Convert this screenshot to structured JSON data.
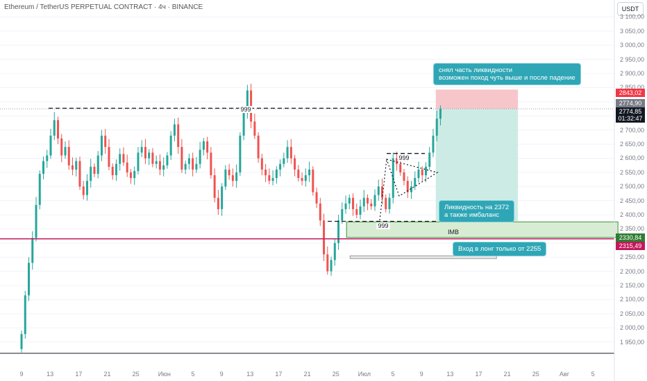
{
  "header": {
    "title": "Ethereum / TetherUS PERPETUAL CONTRACT · 4ч · BINANCE",
    "currency": "USDT"
  },
  "colors": {
    "up": "#26a69a",
    "down": "#ef5350",
    "support_line": "#c2185b",
    "stop_zone": "#f7c6cb",
    "target_zone": "#cdebe5",
    "imb_zone": "#d8ecd3",
    "imb_border": "#3b8f3b",
    "note_bg": "#2fa6b6"
  },
  "chart_data": {
    "type": "candlestick",
    "y_axis": {
      "range": [
        1910,
        3160
      ],
      "ticks": [
        "3 100,00",
        "3 050,00",
        "3 000,00",
        "2 950,00",
        "2 900,00",
        "2 850,00",
        "2 800,00",
        "2 750,00",
        "2 700,00",
        "2 650,00",
        "2 600,00",
        "2 550,00",
        "2 500,00",
        "2 450,00",
        "2 400,00",
        "2 350,00",
        "2 300,00",
        "2 250,00",
        "2 200,00",
        "2 150,00",
        "2 100,00",
        "2 050,00",
        "2 000,00",
        "1 950,00"
      ],
      "tick_values": [
        3100,
        3050,
        3000,
        2950,
        2900,
        2850,
        2800,
        2750,
        2700,
        2650,
        2600,
        2550,
        2500,
        2450,
        2400,
        2350,
        2300,
        2250,
        2200,
        2150,
        2100,
        2050,
        2000,
        1950
      ]
    },
    "x_axis": {
      "ticks": [
        "9",
        "13",
        "17",
        "21",
        "25",
        "Июн",
        "5",
        "9",
        "13",
        "17",
        "21",
        "25",
        "Июл",
        "5",
        "9",
        "13",
        "17",
        "21",
        "25",
        "Авг",
        "5"
      ],
      "tick_index": [
        0,
        8,
        16,
        24,
        32,
        40,
        48,
        56,
        64,
        72,
        80,
        88,
        96,
        104,
        112,
        120,
        128,
        136,
        144,
        152,
        160
      ],
      "range": [
        -0.2,
        166
      ]
    },
    "candles": [
      [
        1925,
        1978
      ],
      [
        1978,
        2115
      ],
      [
        2115,
        2230
      ],
      [
        2230,
        2318
      ],
      [
        2318,
        2435
      ],
      [
        2435,
        2545
      ],
      [
        2545,
        2590
      ],
      [
        2590,
        2610
      ],
      [
        2610,
        2680
      ],
      [
        2680,
        2735
      ],
      [
        2735,
        2670
      ],
      [
        2670,
        2610
      ],
      [
        2610,
        2640
      ],
      [
        2640,
        2575
      ],
      [
        2575,
        2560
      ],
      [
        2560,
        2590
      ],
      [
        2590,
        2500
      ],
      [
        2500,
        2470
      ],
      [
        2470,
        2520
      ],
      [
        2520,
        2570
      ],
      [
        2570,
        2545
      ],
      [
        2545,
        2610
      ],
      [
        2610,
        2680
      ],
      [
        2680,
        2640
      ],
      [
        2640,
        2570
      ],
      [
        2570,
        2540
      ],
      [
        2540,
        2580
      ],
      [
        2580,
        2615
      ],
      [
        2615,
        2585
      ],
      [
        2585,
        2550
      ],
      [
        2550,
        2530
      ],
      [
        2530,
        2555
      ],
      [
        2555,
        2620
      ],
      [
        2620,
        2640
      ],
      [
        2640,
        2600
      ],
      [
        2600,
        2620
      ],
      [
        2620,
        2580
      ],
      [
        2580,
        2590
      ],
      [
        2590,
        2560
      ],
      [
        2560,
        2575
      ],
      [
        2575,
        2610
      ],
      [
        2610,
        2680
      ],
      [
        2680,
        2720
      ],
      [
        2720,
        2640
      ],
      [
        2640,
        2560
      ],
      [
        2560,
        2580
      ],
      [
        2580,
        2600
      ],
      [
        2600,
        2560
      ],
      [
        2560,
        2580
      ],
      [
        2580,
        2630
      ],
      [
        2630,
        2660
      ],
      [
        2660,
        2620
      ],
      [
        2620,
        2540
      ],
      [
        2540,
        2460
      ],
      [
        2460,
        2420
      ],
      [
        2420,
        2500
      ],
      [
        2500,
        2560
      ],
      [
        2560,
        2540
      ],
      [
        2540,
        2520
      ],
      [
        2520,
        2550
      ],
      [
        2550,
        2680
      ],
      [
        2680,
        2760
      ],
      [
        2760,
        2840
      ],
      [
        2840,
        2730
      ],
      [
        2730,
        2680
      ],
      [
        2680,
        2600
      ],
      [
        2600,
        2560
      ],
      [
        2560,
        2540
      ],
      [
        2540,
        2520
      ],
      [
        2520,
        2530
      ],
      [
        2530,
        2560
      ],
      [
        2560,
        2580
      ],
      [
        2580,
        2600
      ],
      [
        2600,
        2640
      ],
      [
        2640,
        2600
      ],
      [
        2600,
        2560
      ],
      [
        2560,
        2530
      ],
      [
        2530,
        2520
      ],
      [
        2520,
        2540
      ],
      [
        2540,
        2560
      ],
      [
        2560,
        2480
      ],
      [
        2480,
        2440
      ],
      [
        2440,
        2380
      ],
      [
        2380,
        2260
      ],
      [
        2260,
        2200
      ],
      [
        2200,
        2240
      ],
      [
        2240,
        2300
      ],
      [
        2300,
        2380
      ],
      [
        2380,
        2420
      ],
      [
        2420,
        2440
      ],
      [
        2440,
        2460
      ],
      [
        2460,
        2420
      ],
      [
        2420,
        2400
      ],
      [
        2400,
        2430
      ],
      [
        2430,
        2460
      ],
      [
        2460,
        2440
      ],
      [
        2440,
        2430
      ],
      [
        2430,
        2470
      ],
      [
        2470,
        2500
      ],
      [
        2500,
        2460
      ],
      [
        2460,
        2420
      ],
      [
        2420,
        2460
      ],
      [
        2460,
        2600
      ],
      [
        2600,
        2580
      ],
      [
        2580,
        2550
      ],
      [
        2550,
        2520
      ],
      [
        2520,
        2480
      ],
      [
        2480,
        2500
      ],
      [
        2500,
        2530
      ],
      [
        2530,
        2560
      ],
      [
        2560,
        2540
      ],
      [
        2540,
        2570
      ],
      [
        2570,
        2620
      ],
      [
        2620,
        2680
      ],
      [
        2680,
        2740
      ],
      [
        2740,
        2775
      ]
    ],
    "levels": {
      "support_line": 2315,
      "liquidity_top": 2777,
      "liquidity_low": 2377,
      "inner_999": 2617
    },
    "zones": {
      "stop": {
        "x_index": [
          116,
          139
        ],
        "price": [
          2775,
          2843
        ]
      },
      "target": {
        "x_index": [
          116,
          139
        ],
        "price": [
          2378,
          2775
        ]
      },
      "imb": {
        "x_index": [
          91,
          167
        ],
        "price": [
          2320,
          2375
        ],
        "label": "IMB"
      },
      "entry": {
        "x_index": [
          92,
          133
        ],
        "price": [
          2245,
          2255
        ]
      }
    },
    "price_labels": [
      {
        "value": 2843.02,
        "text": "2843,02",
        "color": "#f23645"
      },
      {
        "value": 2774.9,
        "text": "2774,90",
        "color": "#787b86"
      },
      {
        "value": 2774.85,
        "text": "2774,85",
        "color": "#131722"
      },
      {
        "text": "01:32:47",
        "color": "#131722"
      },
      {
        "value": 2330.84,
        "text": "2330,84",
        "color": "#2e7d32"
      },
      {
        "value": 2315.49,
        "text": "2315,49",
        "color": "#c2185b"
      }
    ],
    "markers": [
      "999",
      "999",
      "999"
    ],
    "annotations": [
      {
        "text": "снял часть ликвидности\nвозможен поход чуть выше и после падение"
      },
      {
        "text": "Ликвидность на 2372\nа также имбаланс"
      },
      {
        "text": "Вход в лонг только от 2255"
      }
    ]
  }
}
